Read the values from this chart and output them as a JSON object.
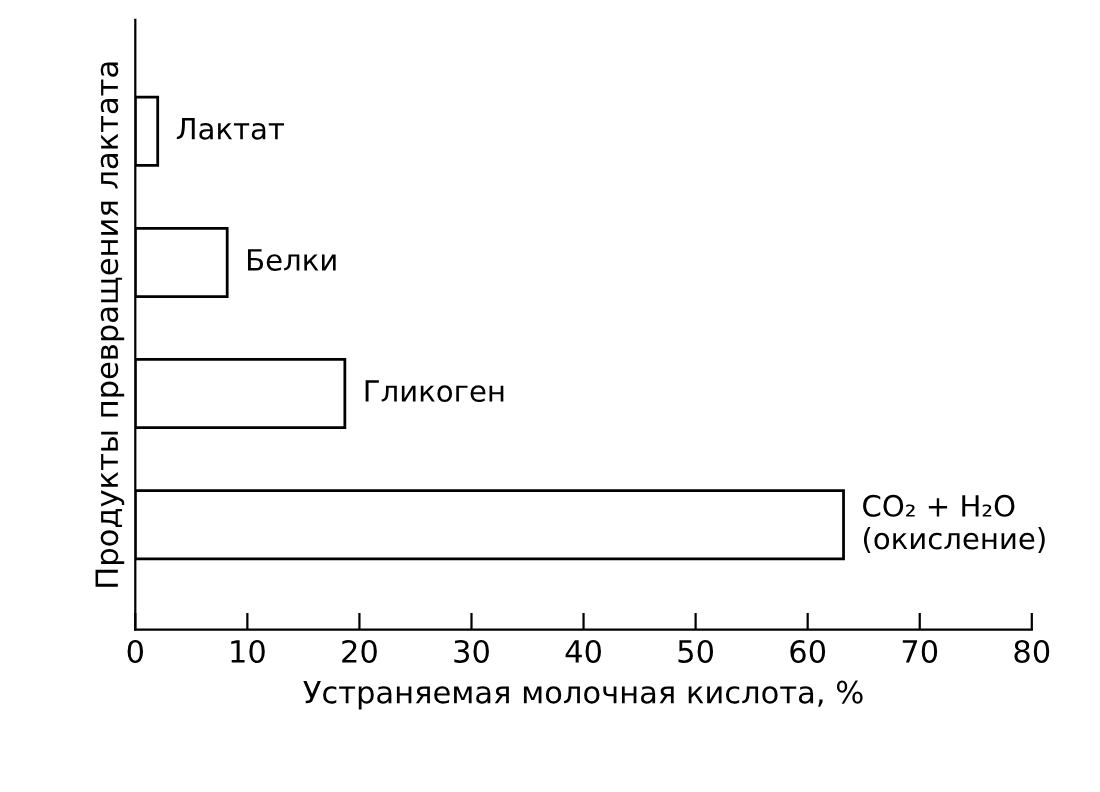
{
  "chart_data": {
    "type": "bar",
    "orientation": "horizontal",
    "xlabel": "Устраняемая молочная кислота, %",
    "ylabel": "Продукты превращения лактата",
    "categories": [
      "Лактат",
      "Белки",
      "Гликоген",
      "CO₂ + H₂O\n(окисление)"
    ],
    "values": [
      2,
      8.2,
      18.7,
      63.2
    ],
    "color": "#ffffff",
    "xlim": [
      0,
      80
    ],
    "xticks": [
      0,
      10,
      20,
      30,
      40,
      50,
      60,
      70,
      80
    ],
    "tick_labels": "x"
  }
}
